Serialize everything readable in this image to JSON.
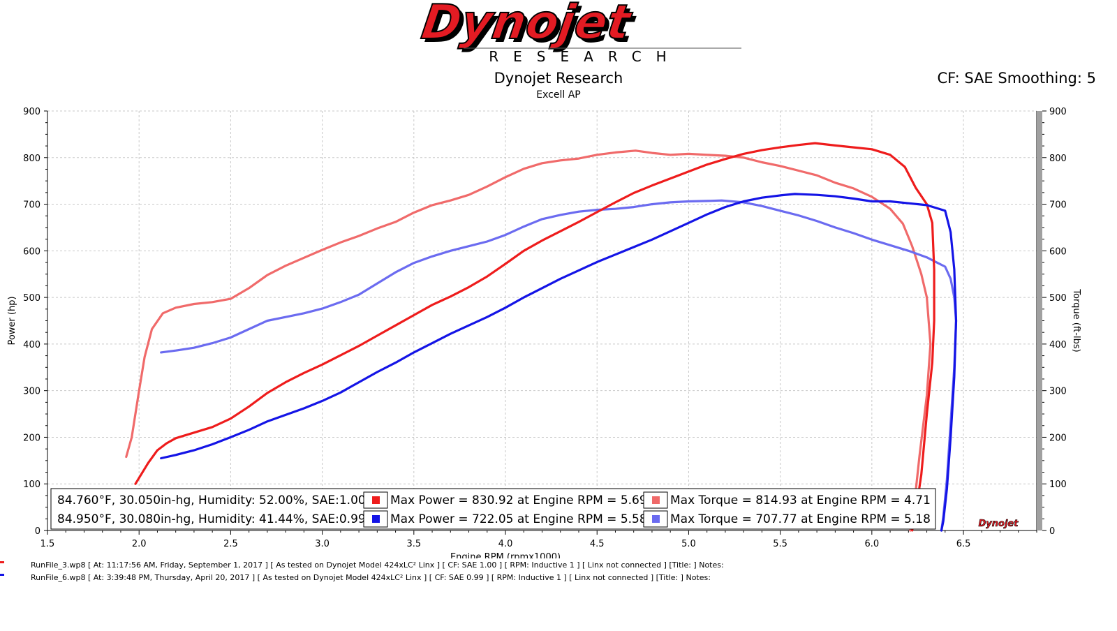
{
  "logo": {
    "word": "Dynojet",
    "sub": "RESEARCH",
    "small_word": "Dynojet"
  },
  "header": {
    "title": "Dynojet Research",
    "subtitle": "Excell AP",
    "cf_text": "CF: SAE Smoothing: 5"
  },
  "legend": {
    "rows": [
      {
        "conditions": "84.760°F, 30.050in-hg, Humidity: 52.00%, SAE:1.00",
        "power_text": "Max Power = 830.92 at Engine RPM = 5.69",
        "torque_text": "Max Torque = 814.93 at Engine RPM = 4.71"
      },
      {
        "conditions": "84.950°F, 30.080in-hg, Humidity: 41.44%, SAE:0.99",
        "power_text": "Max Power = 722.05 at Engine RPM = 5.58",
        "torque_text": "Max Torque = 707.77 at Engine RPM = 5.18"
      }
    ]
  },
  "footer": {
    "runs": [
      {
        "text": "RunFile_3.wp8 [ At: 11:17:56 AM, Friday, September 1, 2017 ] [ As tested on Dynojet Model 424xLC² Linx ] [ CF: SAE 1.00 ] [ RPM: Inductive 1 ] [ Linx not connected ] [Title: ]  Notes:",
        "color": "#ee1c1c"
      },
      {
        "text": "RunFile_6.wp8 [ At: 3:39:48 PM, Thursday, April 20, 2017 ] [ As tested on Dynojet Model 424xLC² Linx ] [ CF: SAE 0.99 ] [ RPM: Inductive 1 ] [ Linx not connected ] [Title: ]  Notes:",
        "color": "#1414e6"
      }
    ]
  },
  "chart_data": {
    "type": "line",
    "xlabel": "Engine RPM (rpmx1000)",
    "ylabel": "Power (hp)",
    "y2label": "Torque (ft-lbs)",
    "xlim": [
      1.5,
      6.9
    ],
    "ylim": [
      0,
      900
    ],
    "y2lim": [
      0,
      900
    ],
    "x_ticks": [
      1.5,
      2.0,
      2.5,
      3.0,
      3.5,
      4.0,
      4.5,
      5.0,
      5.5,
      6.0,
      6.5
    ],
    "x_tick_labels": [
      "1.5",
      "2.0",
      "2.5",
      "3.0",
      "3.5",
      "4.0",
      "4.5",
      "5.0",
      "5.5",
      "6.0",
      "6.5"
    ],
    "y_ticks": [
      0,
      100,
      200,
      300,
      400,
      500,
      600,
      700,
      800,
      900
    ],
    "y_tick_labels": [
      "0",
      "100",
      "200",
      "300",
      "400",
      "500",
      "600",
      "700",
      "800",
      "900"
    ],
    "grid": true,
    "legend_placement": "bottom",
    "series": [
      {
        "color": "#ee1c1c",
        "axis": "left",
        "kind": "power",
        "points": [
          [
            1.98,
            100
          ],
          [
            2.05,
            145
          ],
          [
            2.1,
            172
          ],
          [
            2.15,
            187
          ],
          [
            2.2,
            198
          ],
          [
            2.3,
            210
          ],
          [
            2.4,
            222
          ],
          [
            2.5,
            240
          ],
          [
            2.6,
            266
          ],
          [
            2.7,
            295
          ],
          [
            2.8,
            318
          ],
          [
            2.9,
            338
          ],
          [
            3.0,
            356
          ],
          [
            3.1,
            376
          ],
          [
            3.2,
            396
          ],
          [
            3.3,
            418
          ],
          [
            3.4,
            440
          ],
          [
            3.5,
            462
          ],
          [
            3.6,
            484
          ],
          [
            3.7,
            502
          ],
          [
            3.8,
            522
          ],
          [
            3.9,
            545
          ],
          [
            4.0,
            572
          ],
          [
            4.1,
            600
          ],
          [
            4.2,
            622
          ],
          [
            4.3,
            642
          ],
          [
            4.4,
            662
          ],
          [
            4.5,
            683
          ],
          [
            4.6,
            704
          ],
          [
            4.7,
            724
          ],
          [
            4.8,
            740
          ],
          [
            4.9,
            755
          ],
          [
            5.0,
            770
          ],
          [
            5.1,
            785
          ],
          [
            5.2,
            797
          ],
          [
            5.3,
            808
          ],
          [
            5.4,
            816
          ],
          [
            5.5,
            822
          ],
          [
            5.6,
            827
          ],
          [
            5.69,
            831
          ],
          [
            5.8,
            826
          ],
          [
            5.9,
            822
          ],
          [
            6.0,
            818
          ],
          [
            6.1,
            806
          ],
          [
            6.18,
            780
          ],
          [
            6.24,
            735
          ],
          [
            6.3,
            700
          ],
          [
            6.33,
            660
          ],
          [
            6.34,
            560
          ],
          [
            6.34,
            450
          ],
          [
            6.33,
            360
          ],
          [
            6.3,
            250
          ],
          [
            6.27,
            120
          ],
          [
            6.24,
            40
          ],
          [
            6.22,
            0
          ]
        ]
      },
      {
        "color": "#f06a6a",
        "axis": "right",
        "kind": "torque",
        "points": [
          [
            1.93,
            158
          ],
          [
            1.96,
            200
          ],
          [
            2.0,
            300
          ],
          [
            2.03,
            372
          ],
          [
            2.07,
            432
          ],
          [
            2.13,
            466
          ],
          [
            2.2,
            478
          ],
          [
            2.3,
            486
          ],
          [
            2.4,
            490
          ],
          [
            2.5,
            497
          ],
          [
            2.6,
            520
          ],
          [
            2.7,
            548
          ],
          [
            2.8,
            568
          ],
          [
            2.9,
            585
          ],
          [
            3.0,
            602
          ],
          [
            3.1,
            618
          ],
          [
            3.2,
            632
          ],
          [
            3.3,
            648
          ],
          [
            3.4,
            662
          ],
          [
            3.5,
            682
          ],
          [
            3.6,
            698
          ],
          [
            3.7,
            708
          ],
          [
            3.8,
            720
          ],
          [
            3.9,
            738
          ],
          [
            4.0,
            758
          ],
          [
            4.1,
            776
          ],
          [
            4.2,
            788
          ],
          [
            4.3,
            794
          ],
          [
            4.4,
            798
          ],
          [
            4.5,
            806
          ],
          [
            4.6,
            811
          ],
          [
            4.71,
            815
          ],
          [
            4.8,
            810
          ],
          [
            4.9,
            806
          ],
          [
            5.0,
            808
          ],
          [
            5.1,
            806
          ],
          [
            5.2,
            804
          ],
          [
            5.3,
            800
          ],
          [
            5.4,
            790
          ],
          [
            5.5,
            782
          ],
          [
            5.6,
            772
          ],
          [
            5.7,
            762
          ],
          [
            5.8,
            746
          ],
          [
            5.9,
            734
          ],
          [
            6.0,
            716
          ],
          [
            6.1,
            690
          ],
          [
            6.17,
            658
          ],
          [
            6.22,
            610
          ],
          [
            6.27,
            550
          ],
          [
            6.3,
            500
          ],
          [
            6.32,
            400
          ],
          [
            6.3,
            290
          ],
          [
            6.26,
            160
          ],
          [
            6.23,
            50
          ],
          [
            6.21,
            0
          ]
        ]
      },
      {
        "color": "#1414e6",
        "axis": "left",
        "kind": "power",
        "points": [
          [
            2.12,
            155
          ],
          [
            2.2,
            162
          ],
          [
            2.3,
            172
          ],
          [
            2.4,
            185
          ],
          [
            2.5,
            200
          ],
          [
            2.6,
            216
          ],
          [
            2.7,
            234
          ],
          [
            2.8,
            248
          ],
          [
            2.9,
            262
          ],
          [
            3.0,
            278
          ],
          [
            3.1,
            296
          ],
          [
            3.2,
            318
          ],
          [
            3.3,
            340
          ],
          [
            3.4,
            360
          ],
          [
            3.5,
            382
          ],
          [
            3.6,
            402
          ],
          [
            3.7,
            422
          ],
          [
            3.8,
            440
          ],
          [
            3.9,
            458
          ],
          [
            4.0,
            478
          ],
          [
            4.1,
            500
          ],
          [
            4.2,
            520
          ],
          [
            4.3,
            540
          ],
          [
            4.4,
            558
          ],
          [
            4.5,
            576
          ],
          [
            4.6,
            592
          ],
          [
            4.7,
            608
          ],
          [
            4.8,
            624
          ],
          [
            4.9,
            642
          ],
          [
            5.0,
            660
          ],
          [
            5.1,
            678
          ],
          [
            5.2,
            694
          ],
          [
            5.3,
            706
          ],
          [
            5.4,
            714
          ],
          [
            5.5,
            719
          ],
          [
            5.58,
            722
          ],
          [
            5.7,
            720
          ],
          [
            5.8,
            717
          ],
          [
            5.9,
            712
          ],
          [
            6.0,
            706
          ],
          [
            6.1,
            706
          ],
          [
            6.2,
            702
          ],
          [
            6.3,
            698
          ],
          [
            6.35,
            692
          ],
          [
            6.4,
            686
          ],
          [
            6.43,
            640
          ],
          [
            6.45,
            560
          ],
          [
            6.46,
            450
          ],
          [
            6.45,
            330
          ],
          [
            6.43,
            200
          ],
          [
            6.41,
            90
          ],
          [
            6.39,
            20
          ],
          [
            6.38,
            0
          ]
        ]
      },
      {
        "color": "#6b6bf0",
        "axis": "right",
        "kind": "torque",
        "points": [
          [
            2.12,
            382
          ],
          [
            2.2,
            386
          ],
          [
            2.3,
            392
          ],
          [
            2.4,
            402
          ],
          [
            2.5,
            414
          ],
          [
            2.6,
            432
          ],
          [
            2.7,
            450
          ],
          [
            2.8,
            458
          ],
          [
            2.9,
            466
          ],
          [
            3.0,
            476
          ],
          [
            3.1,
            490
          ],
          [
            3.2,
            506
          ],
          [
            3.3,
            530
          ],
          [
            3.4,
            554
          ],
          [
            3.5,
            574
          ],
          [
            3.6,
            588
          ],
          [
            3.7,
            600
          ],
          [
            3.8,
            610
          ],
          [
            3.9,
            620
          ],
          [
            4.0,
            634
          ],
          [
            4.1,
            652
          ],
          [
            4.2,
            668
          ],
          [
            4.3,
            677
          ],
          [
            4.4,
            684
          ],
          [
            4.5,
            688
          ],
          [
            4.6,
            690
          ],
          [
            4.7,
            694
          ],
          [
            4.8,
            700
          ],
          [
            4.9,
            704
          ],
          [
            5.0,
            706
          ],
          [
            5.1,
            707
          ],
          [
            5.18,
            708
          ],
          [
            5.3,
            704
          ],
          [
            5.4,
            696
          ],
          [
            5.5,
            686
          ],
          [
            5.6,
            676
          ],
          [
            5.7,
            664
          ],
          [
            5.8,
            650
          ],
          [
            5.9,
            638
          ],
          [
            6.0,
            624
          ],
          [
            6.1,
            612
          ],
          [
            6.2,
            600
          ],
          [
            6.3,
            586
          ],
          [
            6.35,
            576
          ],
          [
            6.4,
            566
          ],
          [
            6.43,
            540
          ],
          [
            6.45,
            500
          ],
          [
            6.46,
            450
          ],
          [
            6.45,
            350
          ],
          [
            6.43,
            230
          ],
          [
            6.41,
            110
          ],
          [
            6.39,
            30
          ],
          [
            6.38,
            0
          ]
        ]
      }
    ]
  }
}
